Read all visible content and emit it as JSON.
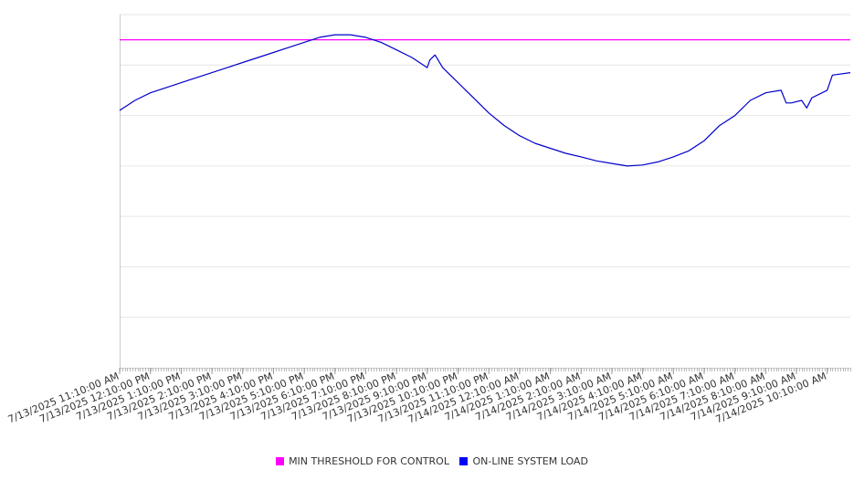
{
  "chart_data": {
    "type": "line",
    "title": "",
    "xlabel": "",
    "ylabel": "",
    "grid": true,
    "legend_position": "bottom",
    "x_tick_labels": [
      "7/13/2025 11:10:00 AM",
      "7/13/2025 12:10:00 PM",
      "7/13/2025 1:10:00 PM",
      "7/13/2025 2:10:00 PM",
      "7/13/2025 3:10:00 PM",
      "7/13/2025 4:10:00 PM",
      "7/13/2025 5:10:00 PM",
      "7/13/2025 6:10:00 PM",
      "7/13/2025 7:10:00 PM",
      "7/13/2025 8:10:00 PM",
      "7/13/2025 9:10:00 PM",
      "7/13/2025 10:10:00 PM",
      "7/13/2025 11:10:00 PM",
      "7/14/2025 12:10:00 AM",
      "7/14/2025 1:10:00 AM",
      "7/14/2025 2:10:00 AM",
      "7/14/2025 3:10:00 AM",
      "7/14/2025 4:10:00 AM",
      "7/14/2025 5:10:00 AM",
      "7/14/2025 6:10:00 AM",
      "7/14/2025 7:10:00 AM",
      "7/14/2025 8:10:00 AM",
      "7/14/2025 9:10:00 AM",
      "7/14/2025 10:10:00 AM"
    ],
    "x_range": [
      "7/13/2025 11:10:00 AM",
      "7/14/2025 10:55:00 AM"
    ],
    "y_range": [
      0,
      7
    ],
    "y_gridlines": 7,
    "series": [
      {
        "name": "MIN THRESHOLD FOR CONTROL",
        "color": "#ff00ff",
        "x": [
          "7/13/2025 11:10:00 AM",
          "7/14/2025 10:55:00 AM"
        ],
        "y": [
          6.5,
          6.5
        ]
      },
      {
        "name": "ON-LINE SYSTEM LOAD",
        "color": "#0000cc",
        "x": [
          "7/13/2025 11:10:00 AM",
          "7/13/2025 11:40:00 AM",
          "7/13/2025 12:10:00 PM",
          "7/13/2025 12:40:00 PM",
          "7/13/2025 1:10:00 PM",
          "7/13/2025 1:40:00 PM",
          "7/13/2025 2:10:00 PM",
          "7/13/2025 2:40:00 PM",
          "7/13/2025 3:10:00 PM",
          "7/13/2025 3:40:00 PM",
          "7/13/2025 4:10:00 PM",
          "7/13/2025 4:40:00 PM",
          "7/13/2025 5:10:00 PM",
          "7/13/2025 5:40:00 PM",
          "7/13/2025 6:10:00 PM",
          "7/13/2025 6:40:00 PM",
          "7/13/2025 7:10:00 PM",
          "7/13/2025 7:40:00 PM",
          "7/13/2025 8:10:00 PM",
          "7/13/2025 8:40:00 PM",
          "7/13/2025 9:10:00 PM",
          "7/13/2025 9:15:00 PM",
          "7/13/2025 9:25:00 PM",
          "7/13/2025 9:40:00 PM",
          "7/13/2025 10:10:00 PM",
          "7/13/2025 10:40:00 PM",
          "7/13/2025 11:10:00 PM",
          "7/13/2025 11:40:00 PM",
          "7/14/2025 12:10:00 AM",
          "7/14/2025 12:40:00 AM",
          "7/14/2025 1:10:00 AM",
          "7/14/2025 1:40:00 AM",
          "7/14/2025 2:10:00 AM",
          "7/14/2025 2:40:00 AM",
          "7/14/2025 3:10:00 AM",
          "7/14/2025 3:40:00 AM",
          "7/14/2025 4:10:00 AM",
          "7/14/2025 4:40:00 AM",
          "7/14/2025 5:10:00 AM",
          "7/14/2025 5:40:00 AM",
          "7/14/2025 6:10:00 AM",
          "7/14/2025 6:40:00 AM",
          "7/14/2025 7:10:00 AM",
          "7/14/2025 7:40:00 AM",
          "7/14/2025 8:10:00 AM",
          "7/14/2025 8:40:00 AM",
          "7/14/2025 8:50:00 AM",
          "7/14/2025 9:00:00 AM",
          "7/14/2025 9:20:00 AM",
          "7/14/2025 9:30:00 AM",
          "7/14/2025 9:40:00 AM",
          "7/14/2025 10:10:00 AM",
          "7/14/2025 10:20:00 AM",
          "7/14/2025 10:55:00 AM"
        ],
        "y": [
          5.1,
          5.3,
          5.45,
          5.55,
          5.65,
          5.75,
          5.85,
          5.95,
          6.05,
          6.15,
          6.25,
          6.35,
          6.45,
          6.55,
          6.6,
          6.6,
          6.55,
          6.45,
          6.3,
          6.15,
          5.95,
          6.1,
          6.2,
          5.95,
          5.65,
          5.35,
          5.05,
          4.8,
          4.6,
          4.45,
          4.35,
          4.25,
          4.18,
          4.1,
          4.05,
          4.0,
          4.02,
          4.08,
          4.18,
          4.3,
          4.5,
          4.8,
          5.0,
          5.3,
          5.45,
          5.5,
          5.25,
          5.25,
          5.3,
          5.15,
          5.35,
          5.5,
          5.8,
          5.85
        ]
      }
    ]
  }
}
